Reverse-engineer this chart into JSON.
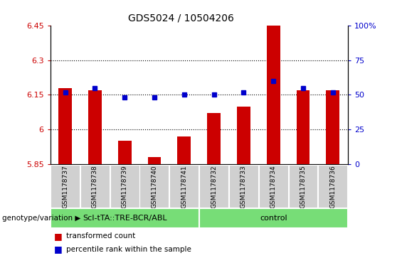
{
  "title": "GDS5024 / 10504206",
  "samples": [
    "GSM1178737",
    "GSM1178738",
    "GSM1178739",
    "GSM1178740",
    "GSM1178741",
    "GSM1178732",
    "GSM1178733",
    "GSM1178734",
    "GSM1178735",
    "GSM1178736"
  ],
  "red_values": [
    6.18,
    6.17,
    5.95,
    5.88,
    5.97,
    6.07,
    6.1,
    6.45,
    6.17,
    6.17
  ],
  "blue_values": [
    52,
    55,
    48,
    48,
    50,
    50,
    52,
    60,
    55,
    52
  ],
  "ylim_left": [
    5.85,
    6.45
  ],
  "ylim_right": [
    0,
    100
  ],
  "yticks_left": [
    5.85,
    6.0,
    6.15,
    6.3,
    6.45
  ],
  "yticks_right": [
    0,
    25,
    50,
    75,
    100
  ],
  "ytick_labels_left": [
    "5.85",
    "6",
    "6.15",
    "6.3",
    "6.45"
  ],
  "ytick_labels_right": [
    "0",
    "25",
    "50",
    "75",
    "100%"
  ],
  "grid_lines": [
    6.0,
    6.15,
    6.3
  ],
  "groups": [
    {
      "label": "ScI-tTA::TRE-BCR/ABL",
      "start": 0,
      "end": 5
    },
    {
      "label": "control",
      "start": 5,
      "end": 10
    }
  ],
  "group_row_label": "genotype/variation",
  "legend_items": [
    {
      "color": "#cc0000",
      "label": "transformed count"
    },
    {
      "color": "#0000cc",
      "label": "percentile rank within the sample"
    }
  ],
  "bar_color": "#cc0000",
  "dot_color": "#0000cc",
  "sample_box_color": "#d0d0d0",
  "group_box_color": "#77dd77",
  "base_value": 5.85,
  "bar_width": 0.45
}
